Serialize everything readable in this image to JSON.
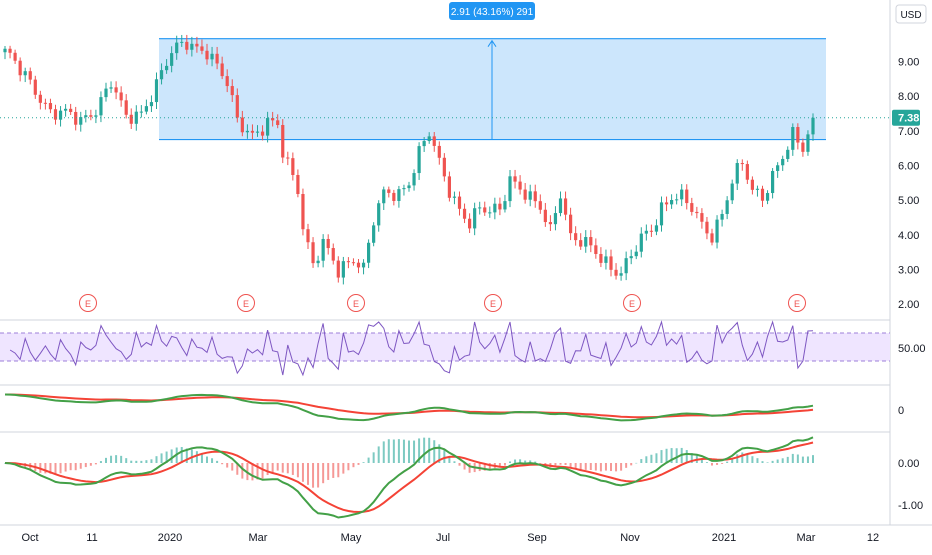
{
  "currency_label": "USD",
  "colors": {
    "up": "#26a69a",
    "down": "#ef5350",
    "candle_up": "#26a69a",
    "candle_down": "#ef5350",
    "range_fill": "#bbdefb",
    "range_line": "#2196f3",
    "last_price": "#26a69a",
    "rsi_line": "#7e57c2",
    "rsi_band": "#efe5ff",
    "red_line": "#f44336",
    "green_line": "#43a047",
    "axis_text": "#131722",
    "grid": "#e0e3eb"
  },
  "measure": {
    "label": "2.91 (43.16%) 291",
    "low": 6.75,
    "high": 9.66
  },
  "last_price": 7.38,
  "earnings_marker": "E",
  "chart_data": {
    "type": "candlestick",
    "x_labels": [
      "Oct",
      "11",
      "2020",
      "Mar",
      "May",
      "Jul",
      "Sep",
      "Nov",
      "2021",
      "Mar",
      "12"
    ],
    "price_axis": {
      "ticks": [
        "9.00",
        "8.00",
        "7.00",
        "6.00",
        "5.00",
        "4.00",
        "3.00",
        "2.00"
      ],
      "ylim": [
        1.6,
        10.2
      ]
    },
    "price_anchors": [
      [
        0,
        9.3
      ],
      [
        3,
        8.7
      ],
      [
        6,
        8.2
      ],
      [
        9,
        7.6
      ],
      [
        12,
        7.45
      ],
      [
        15,
        7.25
      ],
      [
        18,
        7.7
      ],
      [
        21,
        8.4
      ],
      [
        24,
        7.3
      ],
      [
        27,
        7.55
      ],
      [
        30,
        8.4
      ],
      [
        33,
        9.2
      ],
      [
        36,
        9.55
      ],
      [
        40,
        9.35
      ],
      [
        44,
        8.3
      ],
      [
        46,
        7.3
      ],
      [
        49,
        6.95
      ],
      [
        52,
        7.2
      ],
      [
        54,
        7.1
      ],
      [
        55,
        6.3
      ],
      [
        58,
        5.4
      ],
      [
        59,
        4.3
      ],
      [
        61,
        3.2
      ],
      [
        63,
        3.7
      ],
      [
        66,
        2.9
      ],
      [
        69,
        3.4
      ],
      [
        71,
        3.1
      ],
      [
        73,
        4.4
      ],
      [
        75,
        5.1
      ],
      [
        78,
        5.2
      ],
      [
        80,
        5.6
      ],
      [
        82,
        6.4
      ],
      [
        84,
        6.9
      ],
      [
        86,
        6.0
      ],
      [
        88,
        5.3
      ],
      [
        90,
        4.8
      ],
      [
        92,
        4.4
      ],
      [
        94,
        4.7
      ],
      [
        96,
        4.6
      ],
      [
        98,
        4.75
      ],
      [
        100,
        5.7
      ],
      [
        102,
        5.4
      ],
      [
        104,
        5.0
      ],
      [
        106,
        4.7
      ],
      [
        108,
        4.1
      ],
      [
        110,
        5.3
      ],
      [
        112,
        4.0
      ],
      [
        114,
        3.8
      ],
      [
        116,
        3.55
      ],
      [
        118,
        3.3
      ],
      [
        120,
        3.1
      ],
      [
        122,
        3.0
      ],
      [
        124,
        3.4
      ],
      [
        126,
        3.8
      ],
      [
        128,
        4.1
      ],
      [
        130,
        4.8
      ],
      [
        132,
        5.2
      ],
      [
        134,
        5.1
      ],
      [
        136,
        4.7
      ],
      [
        138,
        4.2
      ],
      [
        140,
        4.0
      ],
      [
        142,
        4.7
      ],
      [
        144,
        5.6
      ],
      [
        146,
        6.0
      ],
      [
        148,
        5.2
      ],
      [
        150,
        5.1
      ],
      [
        152,
        5.8
      ],
      [
        154,
        6.3
      ],
      [
        156,
        6.8
      ],
      [
        158,
        6.4
      ],
      [
        160,
        7.38
      ]
    ],
    "rsi": {
      "axis_label": "50.00"
    },
    "osc1": {
      "axis_label": "0"
    },
    "macd": {
      "axis_labels": [
        "0.00",
        "-1.00"
      ]
    }
  }
}
